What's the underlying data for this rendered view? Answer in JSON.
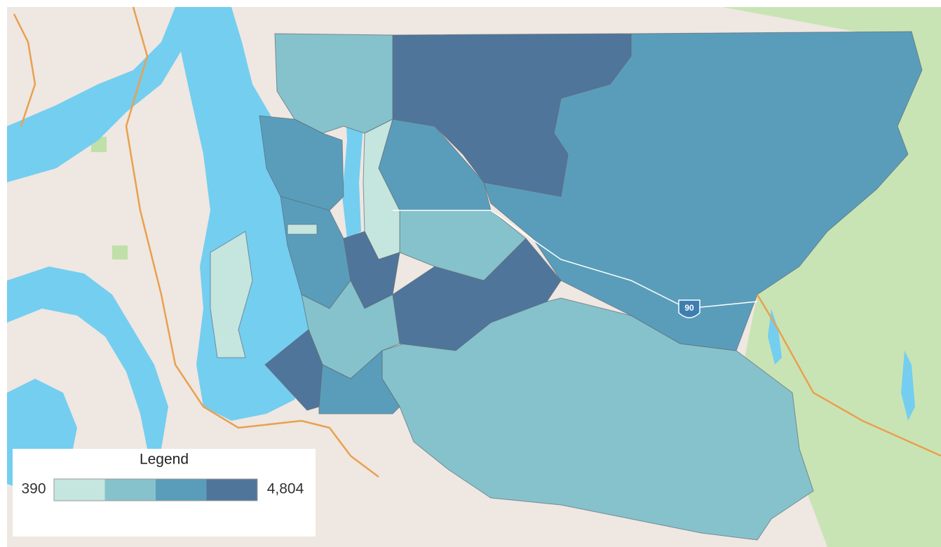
{
  "legend": {
    "title": "Legend",
    "min": 390,
    "max": {
      "value": 4804,
      "label": "4,804"
    },
    "colors": [
      "#c5e5df",
      "#86c2cb",
      "#5a9dbb",
      "#50759a"
    ]
  },
  "map": {
    "highway_shield": "90"
  }
}
